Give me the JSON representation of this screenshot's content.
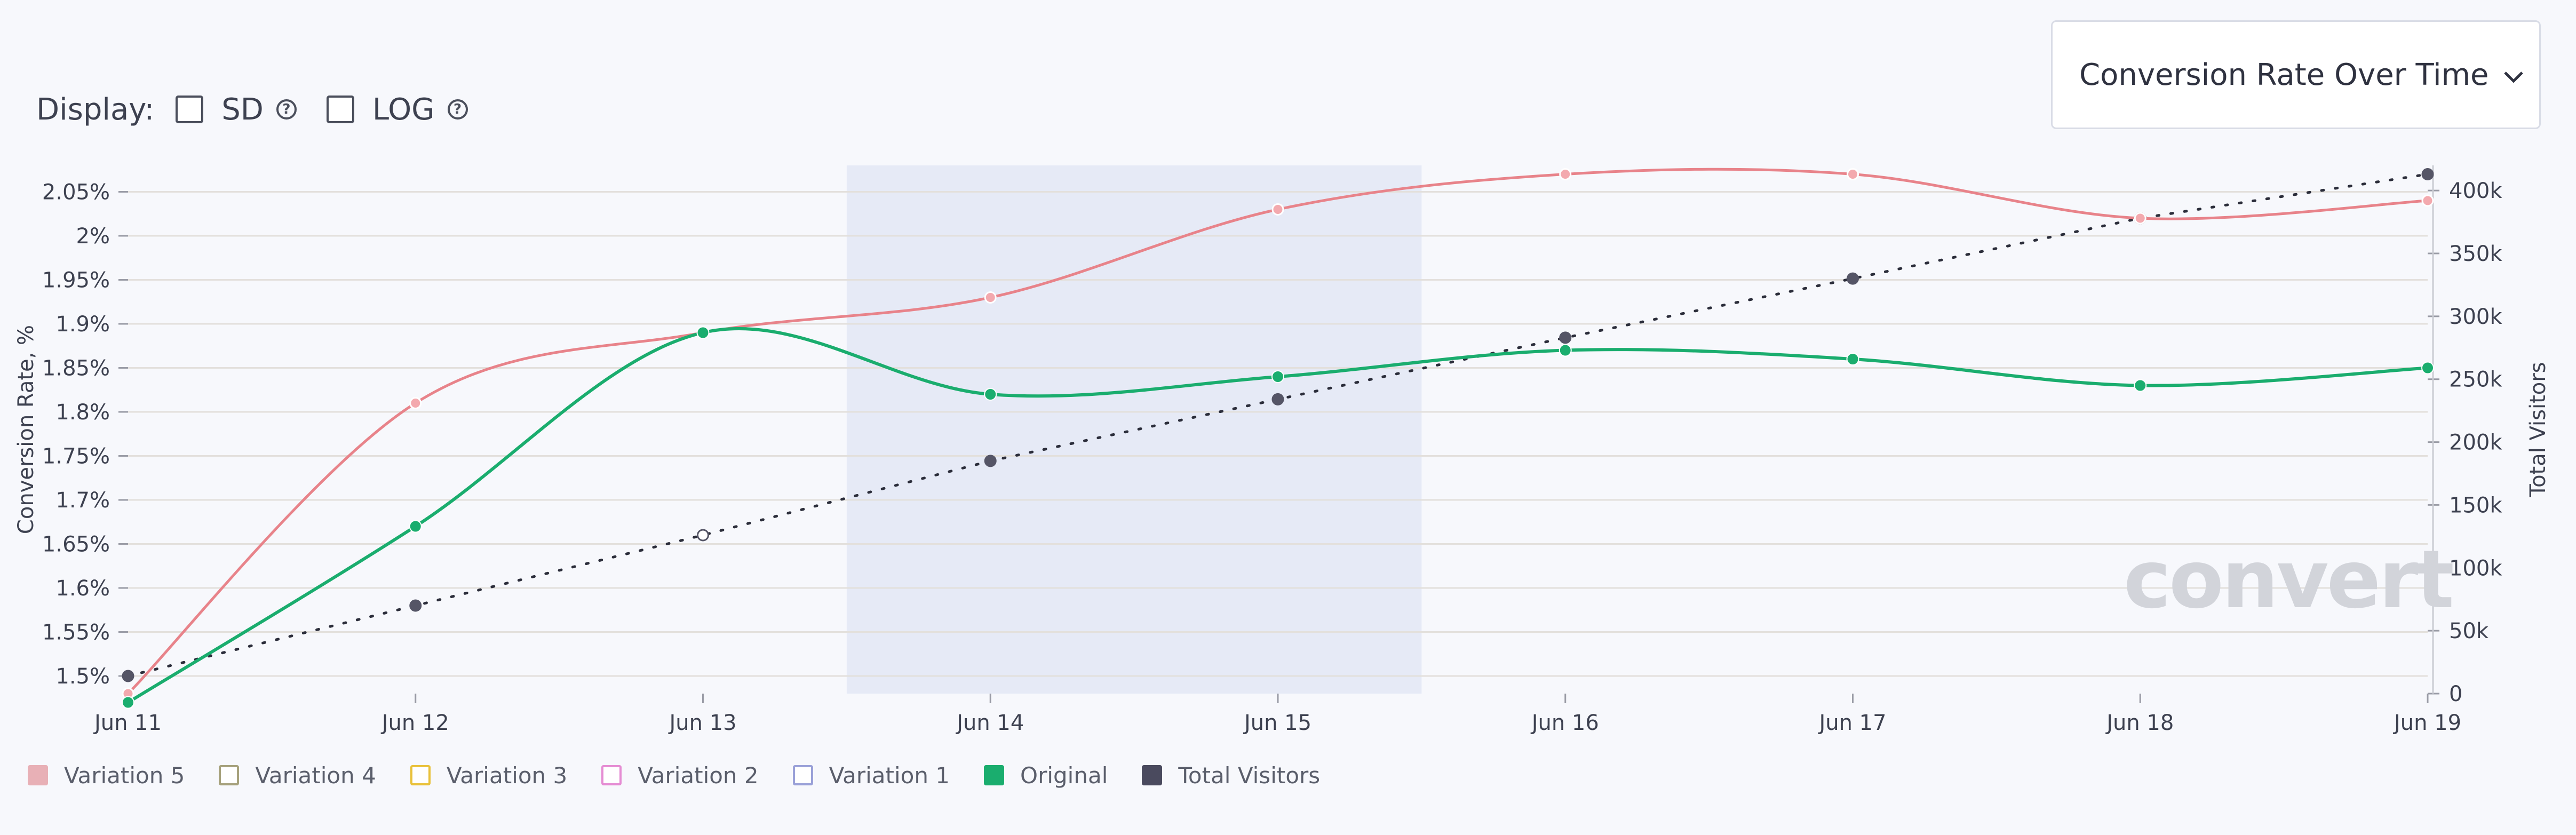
{
  "display": {
    "label": "Display:",
    "options": [
      {
        "label": "SD",
        "checked": false
      },
      {
        "label": "LOG",
        "checked": false
      }
    ],
    "help_glyph": "?"
  },
  "dropdown": {
    "selected": "Conversion Rate Over Time"
  },
  "watermark": "convert",
  "colors": {
    "variation5": "#e8838a",
    "original": "#1aad6e",
    "total_visitors": "#4a4a5e",
    "highlight": "#e6eaf6",
    "grid": "#e3e0dc"
  },
  "chart_data": {
    "type": "line",
    "x": [
      "Jun 11",
      "Jun 12",
      "Jun 13",
      "Jun 14",
      "Jun 15",
      "Jun 16",
      "Jun 17",
      "Jun 18",
      "Jun 19"
    ],
    "ylabel": "Conversion Rate, %",
    "y2label": "Total Visitors",
    "ylim": [
      1.48,
      2.08
    ],
    "y_ticks": [
      "1.5%",
      "1.55%",
      "1.6%",
      "1.65%",
      "1.7%",
      "1.75%",
      "1.8%",
      "1.85%",
      "1.9%",
      "1.95%",
      "2%",
      "2.05%"
    ],
    "y2lim": [
      0,
      420000
    ],
    "y2_ticks": [
      "0",
      "50k",
      "100k",
      "150k",
      "200k",
      "250k",
      "300k",
      "350k",
      "400k"
    ],
    "highlight_range": [
      "Jun 13.5",
      "Jun 15.5"
    ],
    "highlight_x": [
      2.5,
      4.5
    ],
    "grid": true,
    "series": [
      {
        "name": "Variation 5",
        "axis": "left",
        "values": [
          1.48,
          1.81,
          1.89,
          1.93,
          2.03,
          2.07,
          2.07,
          2.02,
          2.04
        ]
      },
      {
        "name": "Original",
        "axis": "left",
        "values": [
          1.47,
          1.67,
          1.89,
          1.82,
          1.84,
          1.87,
          1.86,
          1.83,
          1.85
        ]
      },
      {
        "name": "Total Visitors",
        "axis": "right",
        "values": [
          14000,
          70000,
          126000,
          185000,
          234000,
          283000,
          330000,
          378000,
          413000
        ]
      }
    ],
    "legend": [
      {
        "name": "Variation 5",
        "fill": "#e8b0b6",
        "border": "#e8b0b6"
      },
      {
        "name": "Variation 4",
        "fill": "#ffffff",
        "border": "#a6a17c"
      },
      {
        "name": "Variation 3",
        "fill": "#ffffff",
        "border": "#e9c13a"
      },
      {
        "name": "Variation 2",
        "fill": "#ffffff",
        "border": "#e58cd3"
      },
      {
        "name": "Variation 1",
        "fill": "#ffffff",
        "border": "#9aa1d8"
      },
      {
        "name": "Original",
        "fill": "#1aad6e",
        "border": "#1aad6e"
      },
      {
        "name": "Total Visitors",
        "fill": "#4a4a5e",
        "border": "#4a4a5e"
      }
    ],
    "legend_position": "bottom-left"
  }
}
